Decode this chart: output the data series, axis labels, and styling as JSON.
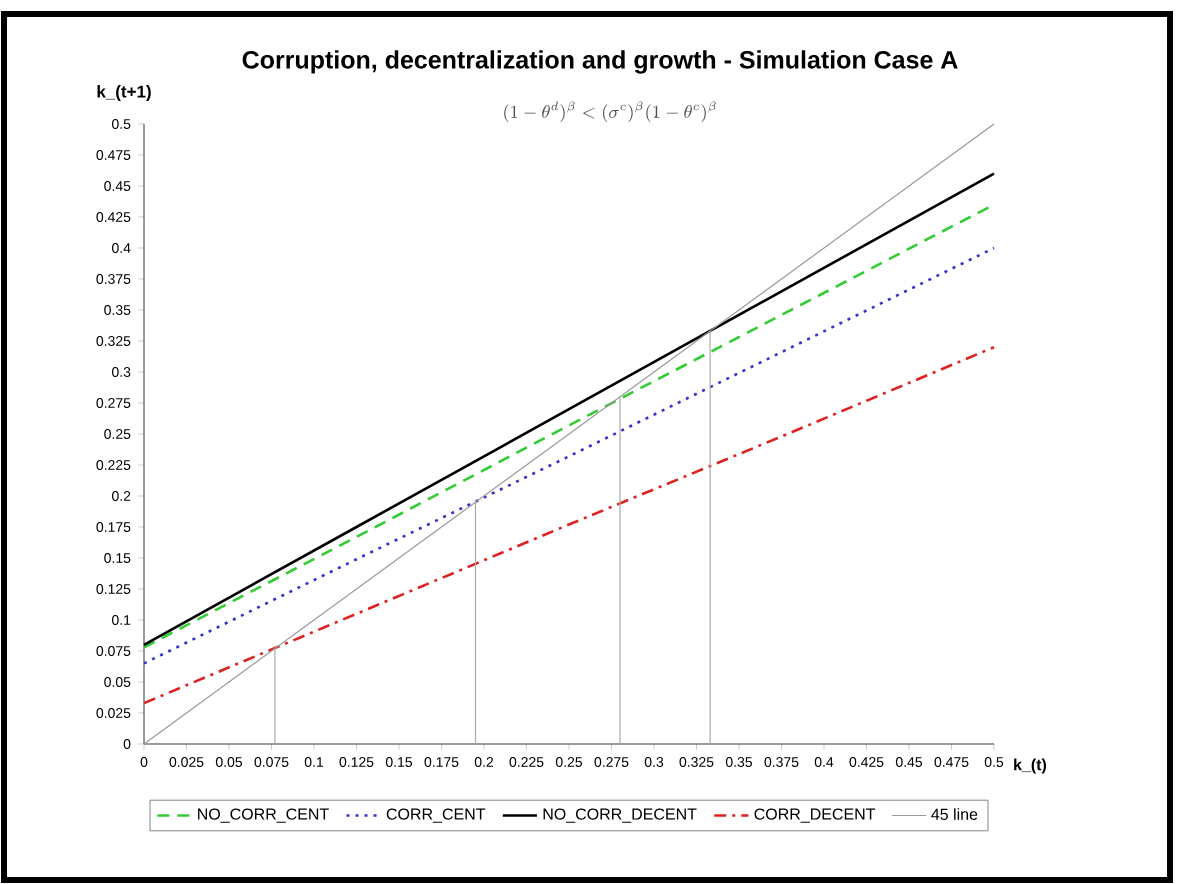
{
  "chart_data": {
    "type": "line",
    "title": "Corruption, decentralization and growth - Simulation Case A",
    "xlabel": "k_(t)",
    "ylabel": "k_(t+1)",
    "annotations": [
      "(1-\\theta^{d})^{\\beta}<(\\sigma^{c})^{\\beta}(1-\\theta^{c})^{\\beta}"
    ],
    "xlim": [
      0,
      0.5
    ],
    "ylim": [
      0,
      0.5
    ],
    "xticks": [
      0,
      0.025,
      0.05,
      0.075,
      0.1,
      0.125,
      0.15,
      0.175,
      0.2,
      0.225,
      0.25,
      0.275,
      0.3,
      0.325,
      0.35,
      0.375,
      0.4,
      0.425,
      0.45,
      0.475,
      0.5
    ],
    "yticks": [
      0,
      0.025,
      0.05,
      0.075,
      0.1,
      0.125,
      0.15,
      0.175,
      0.2,
      0.225,
      0.25,
      0.275,
      0.3,
      0.325,
      0.35,
      0.375,
      0.4,
      0.425,
      0.45,
      0.475,
      0.5
    ],
    "grid": false,
    "legend": "bottom",
    "marker": "none",
    "series": [
      {
        "name": "NO_CORR_CENT",
        "color": "#33cc33",
        "line_style": "dashed",
        "x": [
          0,
          0.125,
          0.25,
          0.375,
          0.5
        ],
        "values": [
          0.078,
          0.167,
          0.257,
          0.346,
          0.435
        ]
      },
      {
        "name": "CORR_CENT",
        "color": "#3333cc",
        "line_style": "dotted",
        "x": [
          0,
          0.125,
          0.25,
          0.375,
          0.5
        ],
        "values": [
          0.065,
          0.149,
          0.232,
          0.316,
          0.4
        ]
      },
      {
        "name": "NO_CORR_DECENT",
        "color": "#000000",
        "line_style": "solid",
        "x": [
          0,
          0.125,
          0.25,
          0.375,
          0.5
        ],
        "values": [
          0.08,
          0.175,
          0.27,
          0.365,
          0.46
        ]
      },
      {
        "name": "CORR_DECENT",
        "color": "#dd2222",
        "line_style": "dashdot",
        "x": [
          0,
          0.125,
          0.25,
          0.375,
          0.5
        ],
        "values": [
          0.033,
          0.105,
          0.177,
          0.248,
          0.32
        ]
      },
      {
        "name": "45 line",
        "color": "#999999",
        "line_style": "solid",
        "x": [
          0,
          0.5
        ],
        "values": [
          0,
          0.5
        ]
      },
      {
        "color": "#aaaaaa",
        "line_style": "solid",
        "x": [
          0.077,
          0.077
        ],
        "values": [
          0,
          0.077
        ]
      },
      {
        "color": "#aaaaaa",
        "line_style": "solid",
        "x": [
          0.195,
          0.195
        ],
        "values": [
          0,
          0.195
        ]
      },
      {
        "color": "#aaaaaa",
        "line_style": "solid",
        "x": [
          0.28,
          0.28
        ],
        "values": [
          0,
          0.28
        ]
      },
      {
        "color": "#aaaaaa",
        "line_style": "solid",
        "x": [
          0.333,
          0.333
        ],
        "values": [
          0,
          0.333
        ]
      }
    ]
  }
}
